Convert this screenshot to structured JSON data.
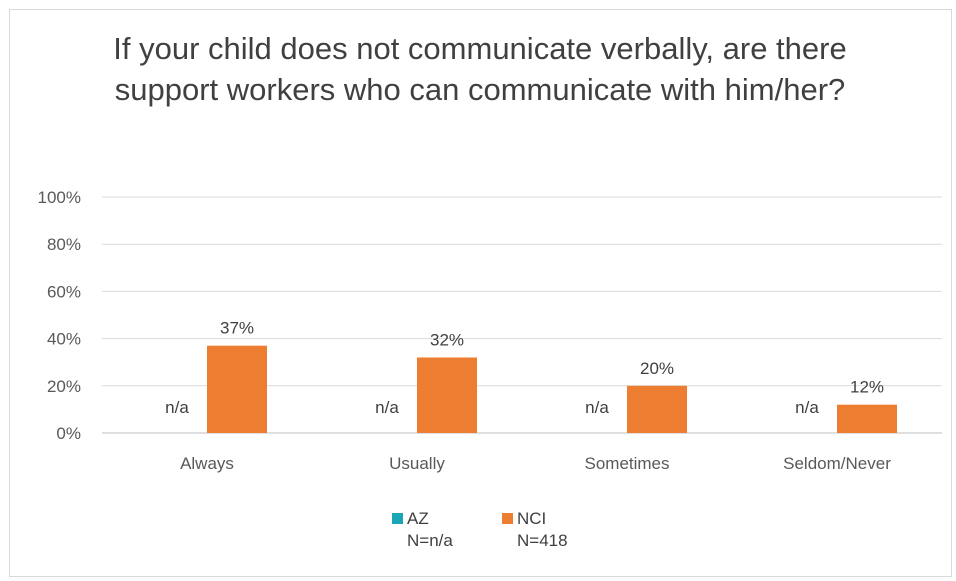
{
  "chart_data": {
    "type": "bar",
    "title": "If your child does not communicate verbally, are there support workers who can communicate with him/her?",
    "categories": [
      "Always",
      "Usually",
      "Sometimes",
      "Seldom/Never"
    ],
    "series": [
      {
        "name": "AZ",
        "sample": "N=n/a",
        "values": [
          null,
          null,
          null,
          null
        ],
        "value_labels": [
          "n/a",
          "n/a",
          "n/a",
          "n/a"
        ],
        "color": "#1aa6b7"
      },
      {
        "name": "NCI",
        "sample": "N=418",
        "values": [
          37,
          32,
          20,
          12
        ],
        "value_labels": [
          "37%",
          "32%",
          "20%",
          "12%"
        ],
        "color": "#ed7d31"
      }
    ],
    "ylim": [
      0,
      100
    ],
    "yticks": [
      0,
      20,
      40,
      60,
      80,
      100
    ],
    "ytick_labels": [
      "0%",
      "20%",
      "40%",
      "60%",
      "80%",
      "100%"
    ],
    "grid": true,
    "legend": "bottom-center"
  }
}
